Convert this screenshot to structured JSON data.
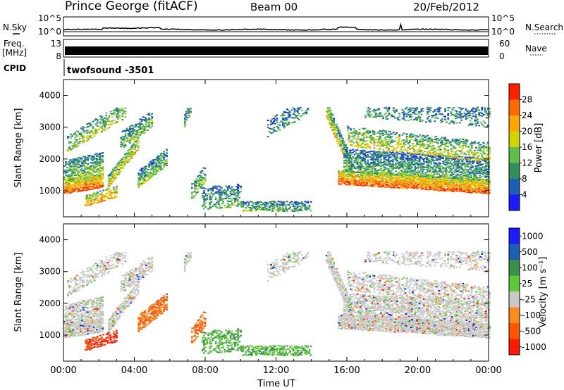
{
  "header": {
    "station": "Prince George (fitACF)",
    "beam": "Beam 00",
    "date": "20/Feb/2012"
  },
  "strip": {
    "nsky_label": "N.Sky",
    "nsky_ticks": [
      "10^5",
      "10^0"
    ],
    "nsearch_label": "N.Search",
    "nsearch_ticks": [
      "10^5",
      "10^0"
    ],
    "freq_label_1": "Freq.",
    "freq_label_2": "[MHz]",
    "freq_ticks": [
      "13",
      "8"
    ],
    "nave_label": "Nave",
    "nave_ticks": [
      "60",
      "0"
    ],
    "cpid_label": "CPID",
    "cpid_value": "twofsound -3501"
  },
  "colors": {
    "power_scale": [
      "#1a1aff",
      "#1a5fb4",
      "#2f8f5a",
      "#5fbf4a",
      "#d4d400",
      "#ffa500",
      "#ff6a00",
      "#ff2000"
    ],
    "velocity_scale": [
      "#1a1aff",
      "#1a5fb4",
      "#3a8f4a",
      "#5fc83a",
      "#c8c8c8",
      "#ff8c1a",
      "#ff5500",
      "#ff1a00"
    ]
  },
  "chart_data": [
    {
      "type": "heatmap",
      "name": "power",
      "xlabel": "Time UT",
      "ylabel": "Slant Range [km]",
      "x_ticks": [
        "00:00",
        "04:00",
        "08:00",
        "12:00",
        "16:00",
        "20:00",
        "00:00"
      ],
      "ylim": [
        180,
        4500
      ],
      "y_ticks": [
        1000,
        2000,
        3000,
        4000
      ],
      "colorbar_label": "Power [dB]",
      "colorbar_ticks": [
        "4",
        "8",
        "12",
        "16",
        "20",
        "24",
        "28"
      ],
      "colorbar_range": [
        0,
        30
      ]
    },
    {
      "type": "heatmap",
      "name": "velocity",
      "xlabel": "Time UT",
      "ylabel": "Slant Range [km]",
      "x_ticks": [
        "00:00",
        "04:00",
        "08:00",
        "12:00",
        "16:00",
        "20:00",
        "00:00"
      ],
      "ylim": [
        180,
        4500
      ],
      "y_ticks": [
        1000,
        2000,
        3000,
        4000
      ],
      "colorbar_label": "Velocity [m s⁻¹]",
      "colorbar_ticks": [
        "1000",
        "500",
        "100",
        "25",
        "-25",
        "-100",
        "-500",
        "-1000"
      ]
    }
  ]
}
